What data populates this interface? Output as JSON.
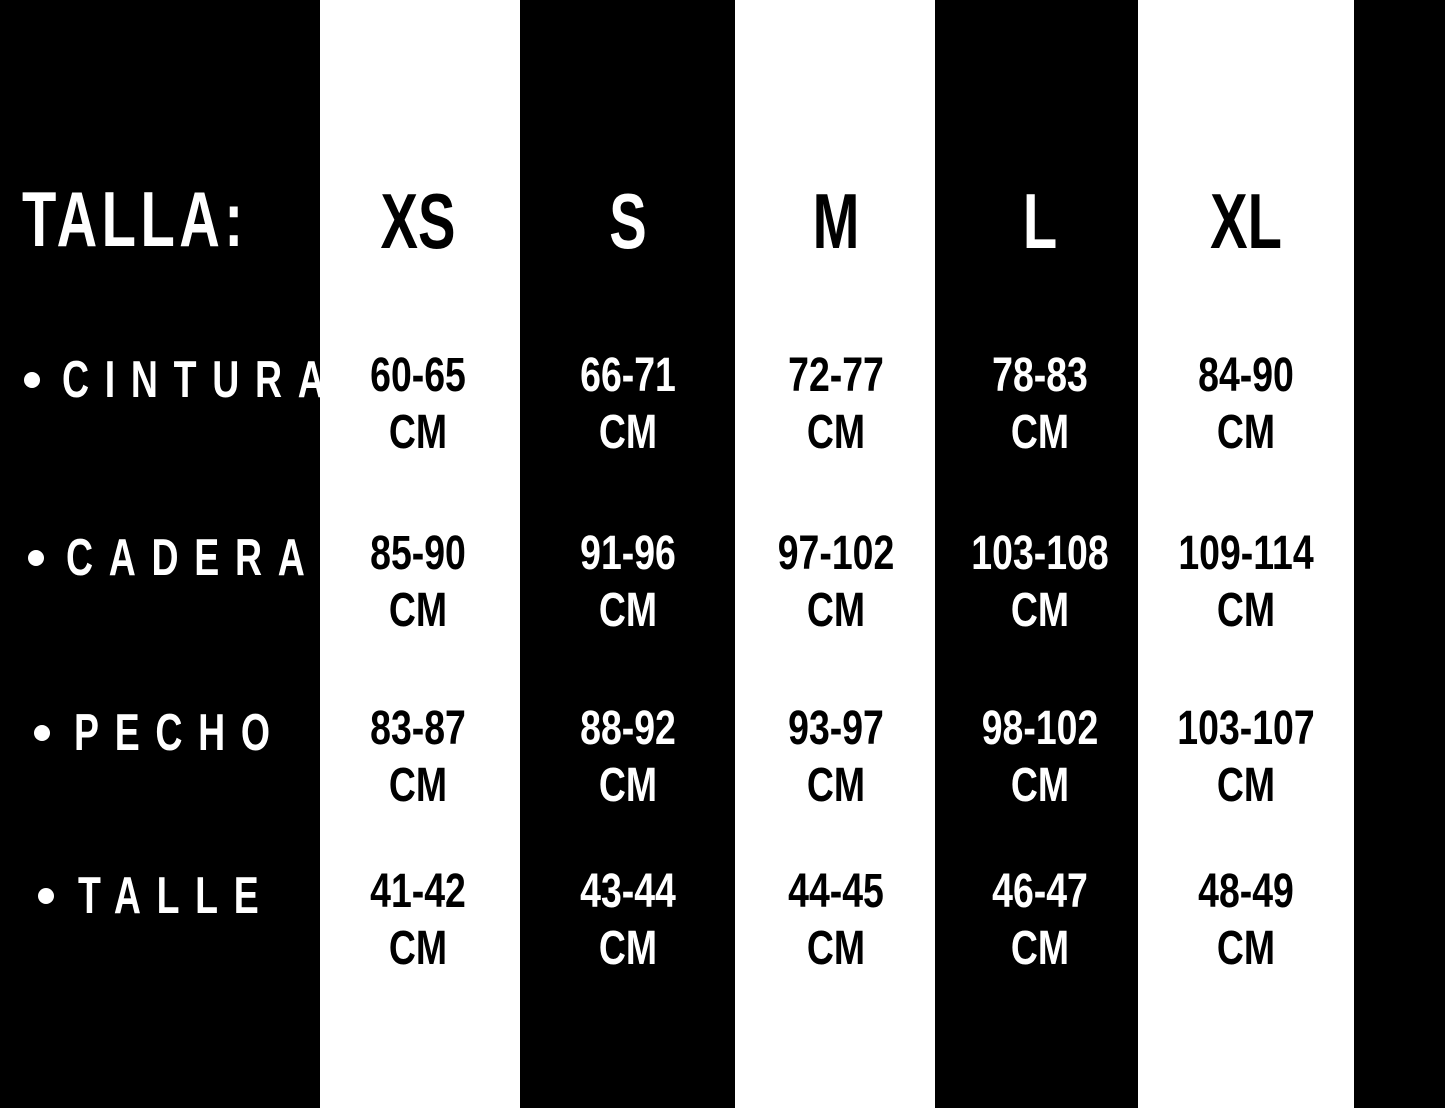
{
  "colors": {
    "dark": "#000000",
    "light": "#ffffff"
  },
  "title": "TALLA:",
  "sizes": [
    "XS",
    "S",
    "M",
    "L",
    "XL"
  ],
  "unit": "CM",
  "rows": [
    {
      "label": "CINTURA",
      "values": [
        "60-65",
        "66-71",
        "72-77",
        "78-83",
        "84-90"
      ]
    },
    {
      "label": "CADERA",
      "values": [
        "85-90",
        "91-96",
        "97-102",
        "103-108",
        "109-114"
      ]
    },
    {
      "label": "PECHO",
      "values": [
        "83-87",
        "88-92",
        "93-97",
        "98-102",
        "103-107"
      ]
    },
    {
      "label": "TALLE",
      "values": [
        "41-42",
        "43-44",
        "44-45",
        "46-47",
        "48-49"
      ]
    }
  ]
}
